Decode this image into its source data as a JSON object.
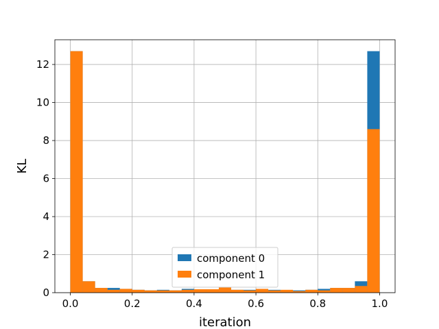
{
  "chart_data": {
    "type": "bar",
    "title": "",
    "xlabel": "iteration",
    "ylabel": "KL",
    "xlim": [
      -0.05,
      1.05
    ],
    "ylim": [
      0,
      13.3
    ],
    "bin_width": 0.04,
    "x": [
      0.0,
      0.04,
      0.08,
      0.12,
      0.16,
      0.2,
      0.24,
      0.28,
      0.32,
      0.36,
      0.4,
      0.44,
      0.48,
      0.52,
      0.56,
      0.6,
      0.64,
      0.68,
      0.72,
      0.76,
      0.8,
      0.84,
      0.88,
      0.92,
      0.96
    ],
    "xticks": [
      {
        "value": 0.0,
        "label": "0.0"
      },
      {
        "value": 0.2,
        "label": "0.2"
      },
      {
        "value": 0.4,
        "label": "0.4"
      },
      {
        "value": 0.6,
        "label": "0.6"
      },
      {
        "value": 0.8,
        "label": "0.8"
      },
      {
        "value": 1.0,
        "label": "1.0"
      }
    ],
    "yticks": [
      {
        "value": 0,
        "label": "0"
      },
      {
        "value": 2,
        "label": "2"
      },
      {
        "value": 4,
        "label": "4"
      },
      {
        "value": 6,
        "label": "6"
      },
      {
        "value": 8,
        "label": "8"
      },
      {
        "value": 10,
        "label": "10"
      },
      {
        "value": 12,
        "label": "12"
      }
    ],
    "grid": true,
    "legend_position": "bottom-center",
    "series": [
      {
        "name": "component 0",
        "color": "#1f77b4",
        "values": [
          12.7,
          0.6,
          0.25,
          0.25,
          0.2,
          0.15,
          0.12,
          0.15,
          0.12,
          0.2,
          0.18,
          0.18,
          0.3,
          0.15,
          0.15,
          0.15,
          0.15,
          0.12,
          0.12,
          0.15,
          0.2,
          0.25,
          0.25,
          0.6,
          12.7
        ]
      },
      {
        "name": "component 1",
        "color": "#ff7f0e",
        "values": [
          12.7,
          0.6,
          0.25,
          0.15,
          0.2,
          0.15,
          0.12,
          0.12,
          0.12,
          0.15,
          0.18,
          0.18,
          0.3,
          0.15,
          0.12,
          0.2,
          0.12,
          0.15,
          0.08,
          0.15,
          0.12,
          0.25,
          0.25,
          0.35,
          8.6
        ]
      }
    ]
  }
}
